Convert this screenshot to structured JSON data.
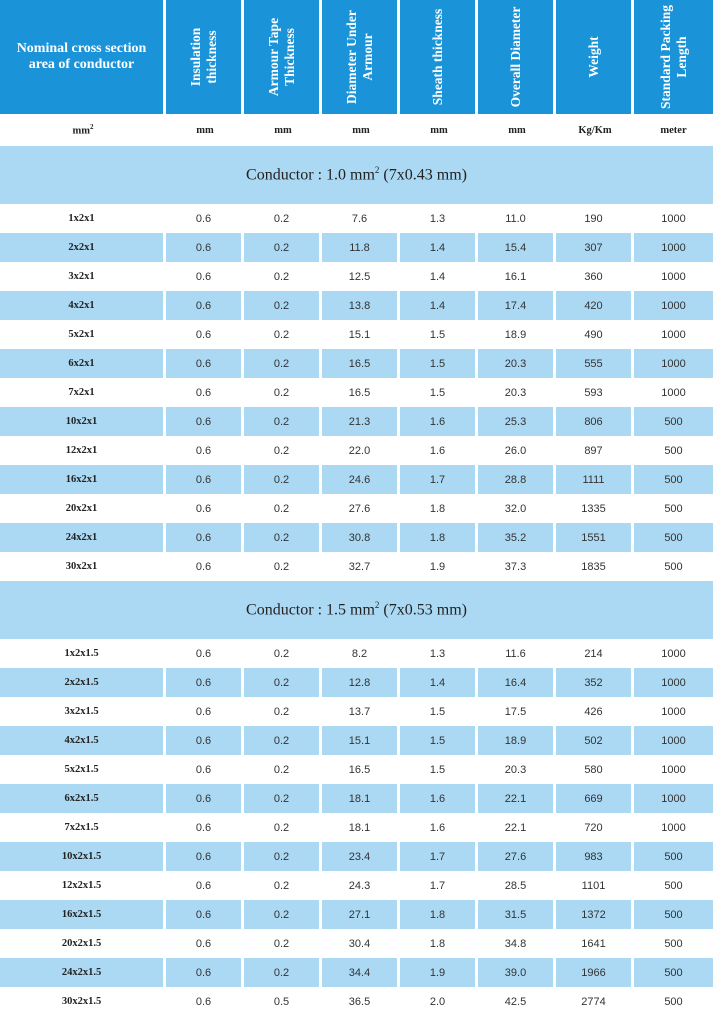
{
  "headers": [
    "Nominal cross section area of conductor",
    "Insulation thickness",
    "Armour Tape Thickness",
    "Diameter Under Armour",
    "Sheath thickness",
    "Overall Diameter",
    "Weight",
    "Standard Packing Length"
  ],
  "units": [
    "mm",
    "mm",
    "mm",
    "mm",
    "mm",
    "mm",
    "Kg/Km",
    "meter"
  ],
  "units_first_sup": "2",
  "sections": [
    {
      "title_prefix": "Conductor : 1.0 mm",
      "title_sup": "2",
      "title_suffix": " (7x0.43 mm)",
      "rows": [
        [
          "1x2x1",
          "0.6",
          "0.2",
          "7.6",
          "1.3",
          "11.0",
          "190",
          "1000"
        ],
        [
          "2x2x1",
          "0.6",
          "0.2",
          "11.8",
          "1.4",
          "15.4",
          "307",
          "1000"
        ],
        [
          "3x2x1",
          "0.6",
          "0.2",
          "12.5",
          "1.4",
          "16.1",
          "360",
          "1000"
        ],
        [
          "4x2x1",
          "0.6",
          "0.2",
          "13.8",
          "1.4",
          "17.4",
          "420",
          "1000"
        ],
        [
          "5x2x1",
          "0.6",
          "0.2",
          "15.1",
          "1.5",
          "18.9",
          "490",
          "1000"
        ],
        [
          "6x2x1",
          "0.6",
          "0.2",
          "16.5",
          "1.5",
          "20.3",
          "555",
          "1000"
        ],
        [
          "7x2x1",
          "0.6",
          "0.2",
          "16.5",
          "1.5",
          "20.3",
          "593",
          "1000"
        ],
        [
          "10x2x1",
          "0.6",
          "0.2",
          "21.3",
          "1.6",
          "25.3",
          "806",
          "500"
        ],
        [
          "12x2x1",
          "0.6",
          "0.2",
          "22.0",
          "1.6",
          "26.0",
          "897",
          "500"
        ],
        [
          "16x2x1",
          "0.6",
          "0.2",
          "24.6",
          "1.7",
          "28.8",
          "1111",
          "500"
        ],
        [
          "20x2x1",
          "0.6",
          "0.2",
          "27.6",
          "1.8",
          "32.0",
          "1335",
          "500"
        ],
        [
          "24x2x1",
          "0.6",
          "0.2",
          "30.8",
          "1.8",
          "35.2",
          "1551",
          "500"
        ],
        [
          "30x2x1",
          "0.6",
          "0.2",
          "32.7",
          "1.9",
          "37.3",
          "1835",
          "500"
        ]
      ]
    },
    {
      "title_prefix": "Conductor : 1.5 mm",
      "title_sup": "2",
      "title_suffix": " (7x0.53 mm)",
      "rows": [
        [
          "1x2x1.5",
          "0.6",
          "0.2",
          "8.2",
          "1.3",
          "11.6",
          "214",
          "1000"
        ],
        [
          "2x2x1.5",
          "0.6",
          "0.2",
          "12.8",
          "1.4",
          "16.4",
          "352",
          "1000"
        ],
        [
          "3x2x1.5",
          "0.6",
          "0.2",
          "13.7",
          "1.5",
          "17.5",
          "426",
          "1000"
        ],
        [
          "4x2x1.5",
          "0.6",
          "0.2",
          "15.1",
          "1.5",
          "18.9",
          "502",
          "1000"
        ],
        [
          "5x2x1.5",
          "0.6",
          "0.2",
          "16.5",
          "1.5",
          "20.3",
          "580",
          "1000"
        ],
        [
          "6x2x1.5",
          "0.6",
          "0.2",
          "18.1",
          "1.6",
          "22.1",
          "669",
          "1000"
        ],
        [
          "7x2x1.5",
          "0.6",
          "0.2",
          "18.1",
          "1.6",
          "22.1",
          "720",
          "1000"
        ],
        [
          "10x2x1.5",
          "0.6",
          "0.2",
          "23.4",
          "1.7",
          "27.6",
          "983",
          "500"
        ],
        [
          "12x2x1.5",
          "0.6",
          "0.2",
          "24.3",
          "1.7",
          "28.5",
          "1101",
          "500"
        ],
        [
          "16x2x1.5",
          "0.6",
          "0.2",
          "27.1",
          "1.8",
          "31.5",
          "1372",
          "500"
        ],
        [
          "20x2x1.5",
          "0.6",
          "0.2",
          "30.4",
          "1.8",
          "34.8",
          "1641",
          "500"
        ],
        [
          "24x2x1.5",
          "0.6",
          "0.2",
          "34.4",
          "1.9",
          "39.0",
          "1966",
          "500"
        ],
        [
          "30x2x1.5",
          "0.6",
          "0.5",
          "36.5",
          "2.0",
          "42.5",
          "2774",
          "500"
        ]
      ]
    }
  ]
}
